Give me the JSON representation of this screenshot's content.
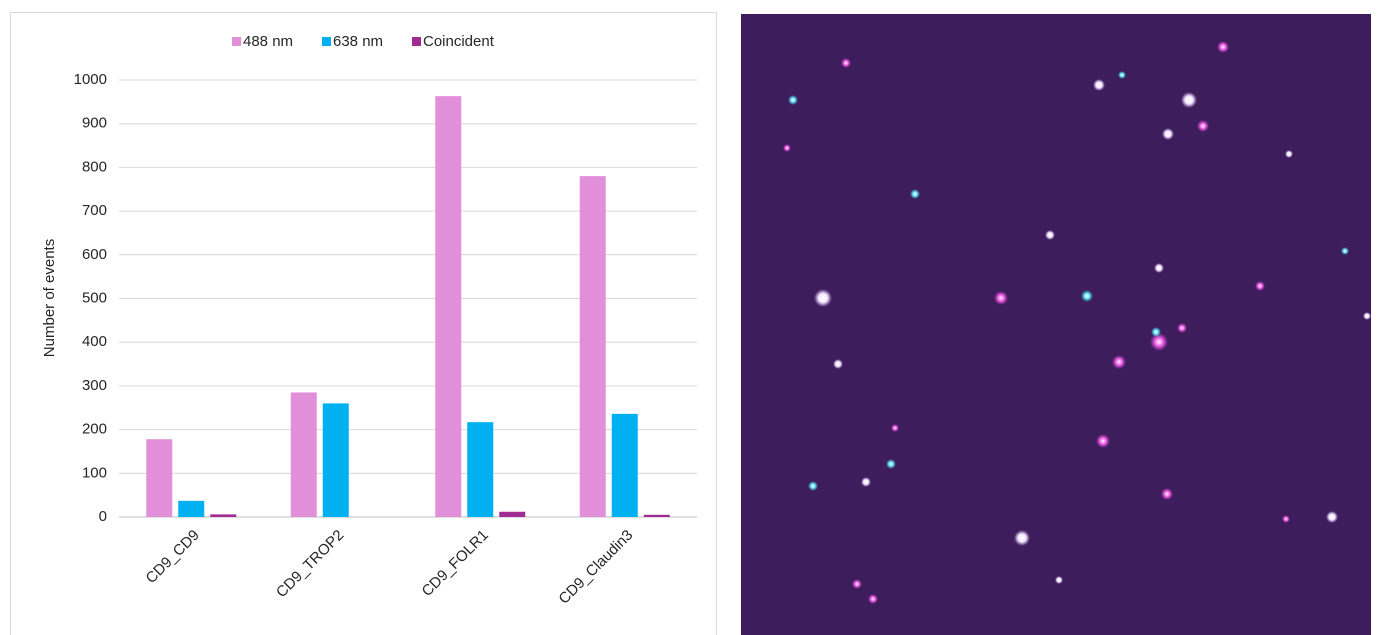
{
  "chart_data": {
    "type": "bar",
    "categories": [
      "CD9_CD9",
      "CD9_TROP2",
      "CD9_FOLR1",
      "CD9_Claudin3"
    ],
    "series": [
      {
        "name": "488 nm",
        "color": "#e08fd8",
        "values": [
          178,
          285,
          963,
          780
        ]
      },
      {
        "name": "638 nm",
        "color": "#00b0f0",
        "values": [
          37,
          260,
          217,
          236
        ]
      },
      {
        "name": "Coincident",
        "color": "#a02b93",
        "values": [
          6,
          0,
          12,
          5
        ]
      }
    ],
    "y_label": "Number of events",
    "ylim": [
      0,
      1000
    ],
    "yticks": [
      0,
      100,
      200,
      300,
      400,
      500,
      600,
      700,
      800,
      900,
      1000
    ],
    "grid": true,
    "legend": "top"
  }
}
